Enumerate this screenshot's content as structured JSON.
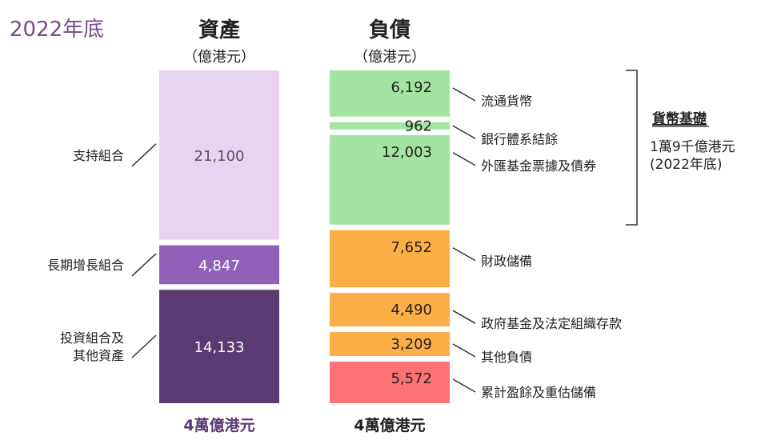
{
  "chart_data": {
    "type": "bar",
    "subtype": "stacked-balance-sheet",
    "title": "2022年底",
    "assets": {
      "heading": "資產",
      "unit": "（億港元）",
      "total_label": "4萬億港元",
      "segments": [
        {
          "name": "支持組合",
          "value": 21100,
          "value_label": "21,100",
          "color": "#e8d3f2",
          "text_color": "#555555"
        },
        {
          "name": "長期增長組合",
          "value": 4847,
          "value_label": "4,847",
          "color": "#9060b8",
          "text_color": "#ffffff"
        },
        {
          "name": "投資組合及其他資產",
          "name_lines": [
            "投資組合及",
            "其他資產"
          ],
          "value": 14133,
          "value_label": "14,133",
          "color": "#5a3a70",
          "text_color": "#ffffff"
        }
      ]
    },
    "liabilities": {
      "heading": "負債",
      "unit": "（億港元）",
      "total_label": "4萬億港元",
      "segments": [
        {
          "name": "流通貨幣",
          "value": 6192,
          "value_label": "6,192",
          "color": "#a3e4a3"
        },
        {
          "name": "銀行體系結餘",
          "value": 962,
          "value_label": "962",
          "color": "#a3e4a3"
        },
        {
          "name": "外匯基金票據及債券",
          "value": 12003,
          "value_label": "12,003",
          "color": "#a3e4a3"
        },
        {
          "name": "財政儲備",
          "value": 7652,
          "value_label": "7,652",
          "color": "#fdae47"
        },
        {
          "name": "政府基金及法定組織存款",
          "value": 4490,
          "value_label": "4,490",
          "color": "#fdae47"
        },
        {
          "name": "其他負債",
          "value": 3209,
          "value_label": "3,209",
          "color": "#fdae47"
        },
        {
          "name": "累計盈餘及重估儲備",
          "value": 5572,
          "value_label": "5,572",
          "color": "#fd7373"
        }
      ]
    },
    "monetary_base": {
      "title": "貨幣基礎",
      "value_label": "1萬9千億港元",
      "date_label": "(2022年底)"
    },
    "colors": {
      "title": "#7a4a8c",
      "text": "#222222",
      "line": "#333333"
    }
  }
}
